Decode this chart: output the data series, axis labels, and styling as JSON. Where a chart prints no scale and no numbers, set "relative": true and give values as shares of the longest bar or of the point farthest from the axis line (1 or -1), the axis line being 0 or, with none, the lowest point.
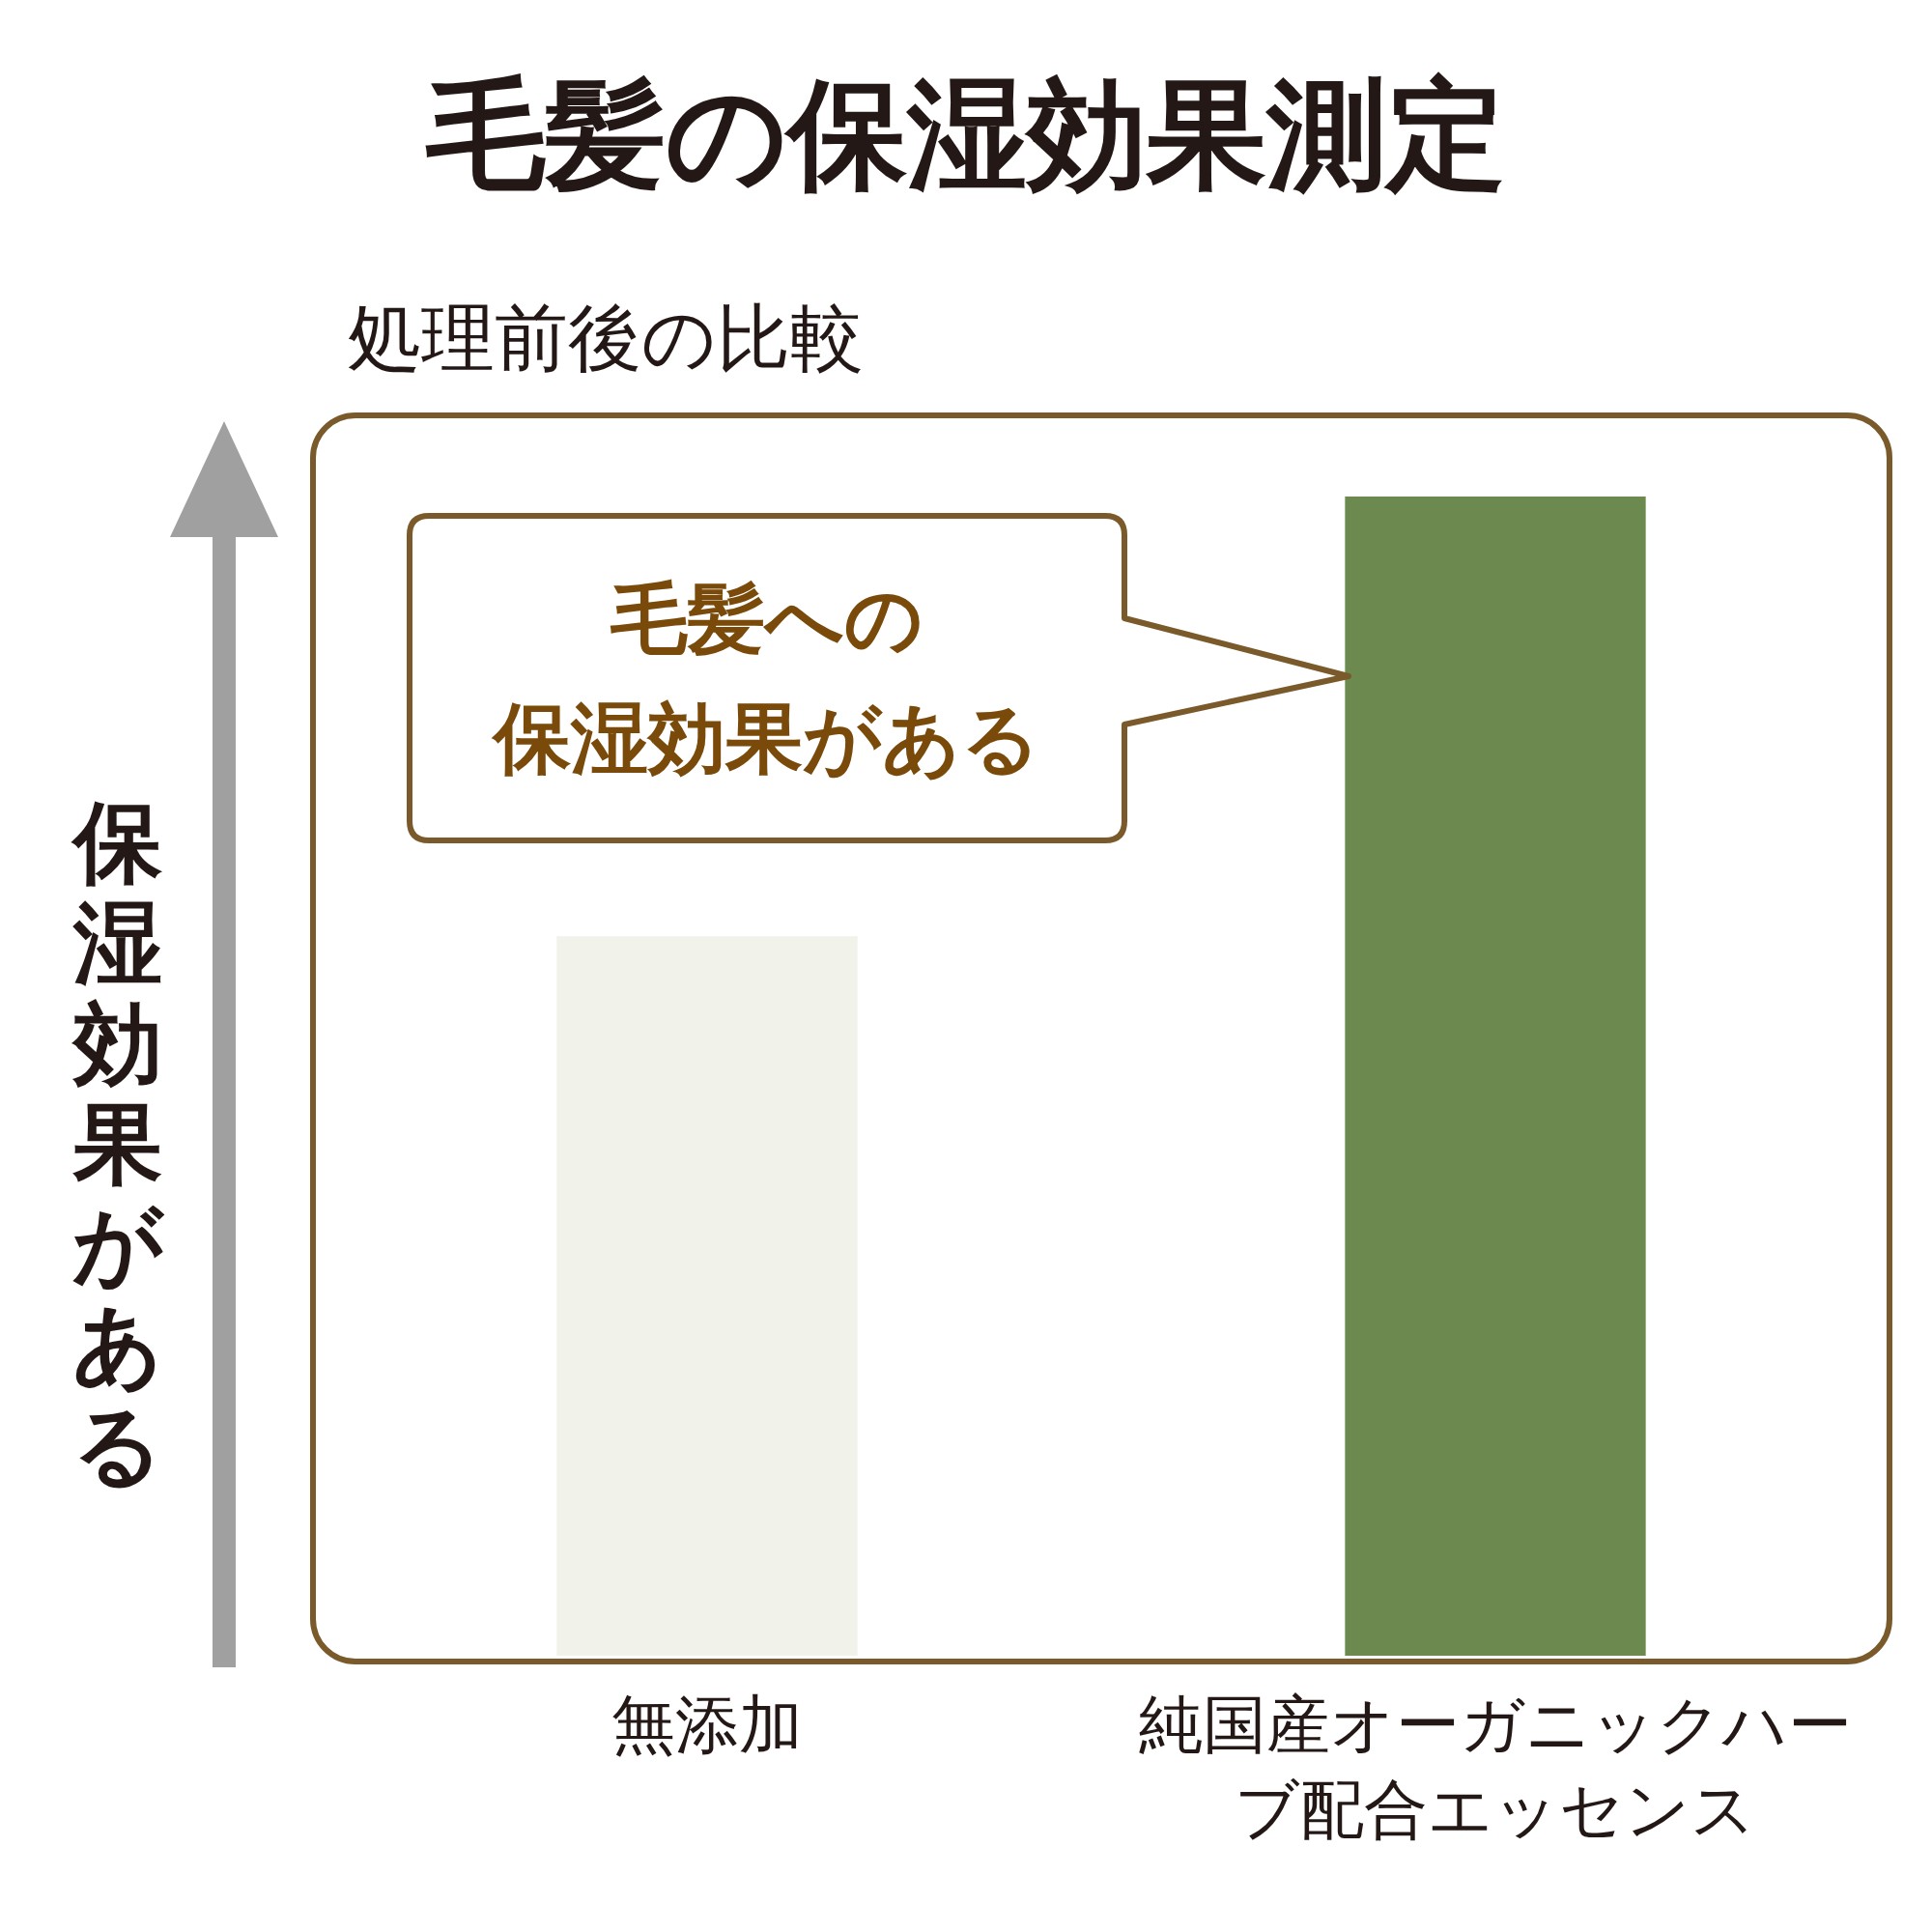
{
  "chart_data": {
    "type": "bar",
    "title": "毛髪の保湿効果測定",
    "subtitle": "処理前後の比較",
    "ylabel": "保湿効果がある",
    "categories": [
      "無添加",
      "純国産オーガニックハーブ配合エッセンス"
    ],
    "values": [
      0.62,
      1
    ],
    "colors": [
      "#f1f2ea",
      "#6c8a4f"
    ],
    "relative": true,
    "grid": false,
    "legend": false,
    "annotations": [
      "毛髪への保湿効果がある"
    ]
  }
}
